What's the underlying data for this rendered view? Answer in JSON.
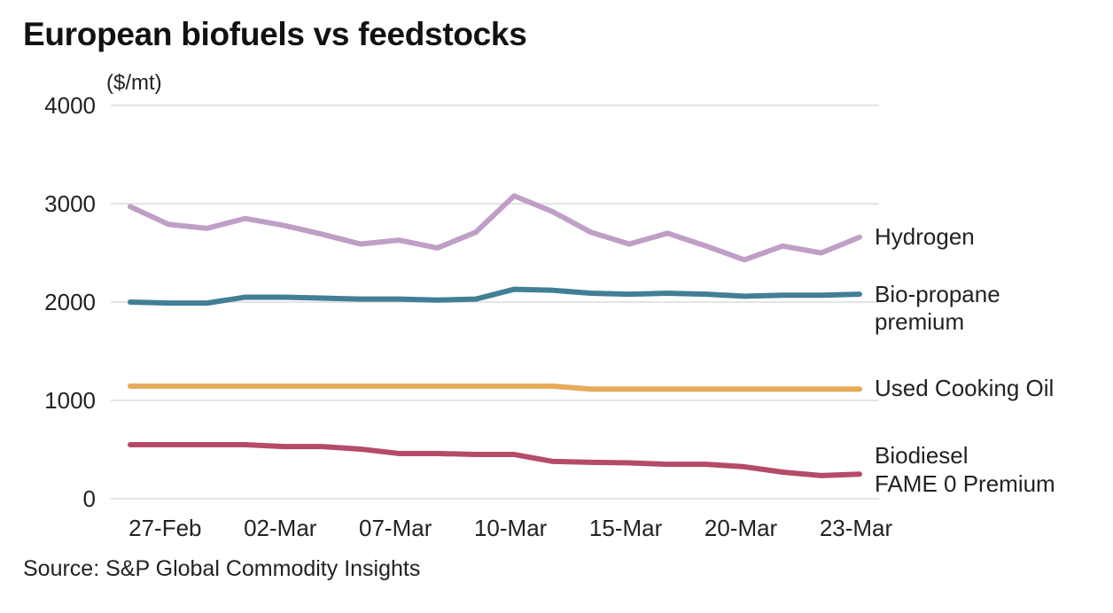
{
  "chart_data": {
    "type": "line",
    "title": "European biofuels vs feedstocks",
    "ylabel": "($/mt)",
    "xlabel": "",
    "source": "Source: S&P Global Commodity Insights",
    "ylim": [
      0,
      4000
    ],
    "yticks": [
      0,
      1000,
      2000,
      3000,
      4000
    ],
    "grid": true,
    "x": [
      "26-Feb",
      "27-Feb",
      "28-Feb",
      "01-Mar",
      "02-Mar",
      "03-Mar",
      "06-Mar",
      "07-Mar",
      "08-Mar",
      "09-Mar",
      "10-Mar",
      "13-Mar",
      "14-Mar",
      "15-Mar",
      "16-Mar",
      "17-Mar",
      "20-Mar",
      "21-Mar",
      "22-Mar",
      "23-Mar"
    ],
    "xtick_labels": [
      {
        "index": 1,
        "label": "27-Feb"
      },
      {
        "index": 4,
        "label": "02-Mar"
      },
      {
        "index": 7,
        "label": "07-Mar"
      },
      {
        "index": 10,
        "label": "10-Mar"
      },
      {
        "index": 13,
        "label": "15-Mar"
      },
      {
        "index": 16,
        "label": "20-Mar"
      },
      {
        "index": 19,
        "label": "23-Mar"
      }
    ],
    "legend_placement": "right (end-of-line labels)",
    "series": [
      {
        "name": "Hydrogen",
        "label_lines": [
          "Hydrogen"
        ],
        "color": "#bf9fc6",
        "values": [
          2970,
          2790,
          2750,
          2850,
          2780,
          2690,
          2590,
          2630,
          2550,
          2710,
          3080,
          2920,
          2710,
          2590,
          2700,
          2570,
          2430,
          2570,
          2500,
          2660
        ]
      },
      {
        "name": "Bio-propane premium",
        "label_lines": [
          "Bio-propane",
          "premium"
        ],
        "color": "#427f96",
        "values": [
          2000,
          1990,
          1990,
          2050,
          2050,
          2040,
          2030,
          2030,
          2020,
          2030,
          2130,
          2120,
          2090,
          2080,
          2090,
          2080,
          2060,
          2070,
          2070,
          2080
        ]
      },
      {
        "name": "Used Cooking Oil",
        "label_lines": [
          "Used Cooking Oil"
        ],
        "color": "#e8a95a",
        "values": [
          1145,
          1145,
          1145,
          1145,
          1145,
          1145,
          1145,
          1145,
          1145,
          1145,
          1145,
          1145,
          1115,
          1115,
          1115,
          1115,
          1115,
          1115,
          1115,
          1115
        ]
      },
      {
        "name": "Biodiesel FAME 0 Premium",
        "label_lines": [
          "Biodiesel",
          "FAME 0 Premium"
        ],
        "color": "#b54b69",
        "values": [
          550,
          550,
          550,
          550,
          530,
          530,
          505,
          460,
          460,
          450,
          450,
          380,
          370,
          365,
          350,
          350,
          325,
          270,
          235,
          250
        ]
      }
    ]
  }
}
